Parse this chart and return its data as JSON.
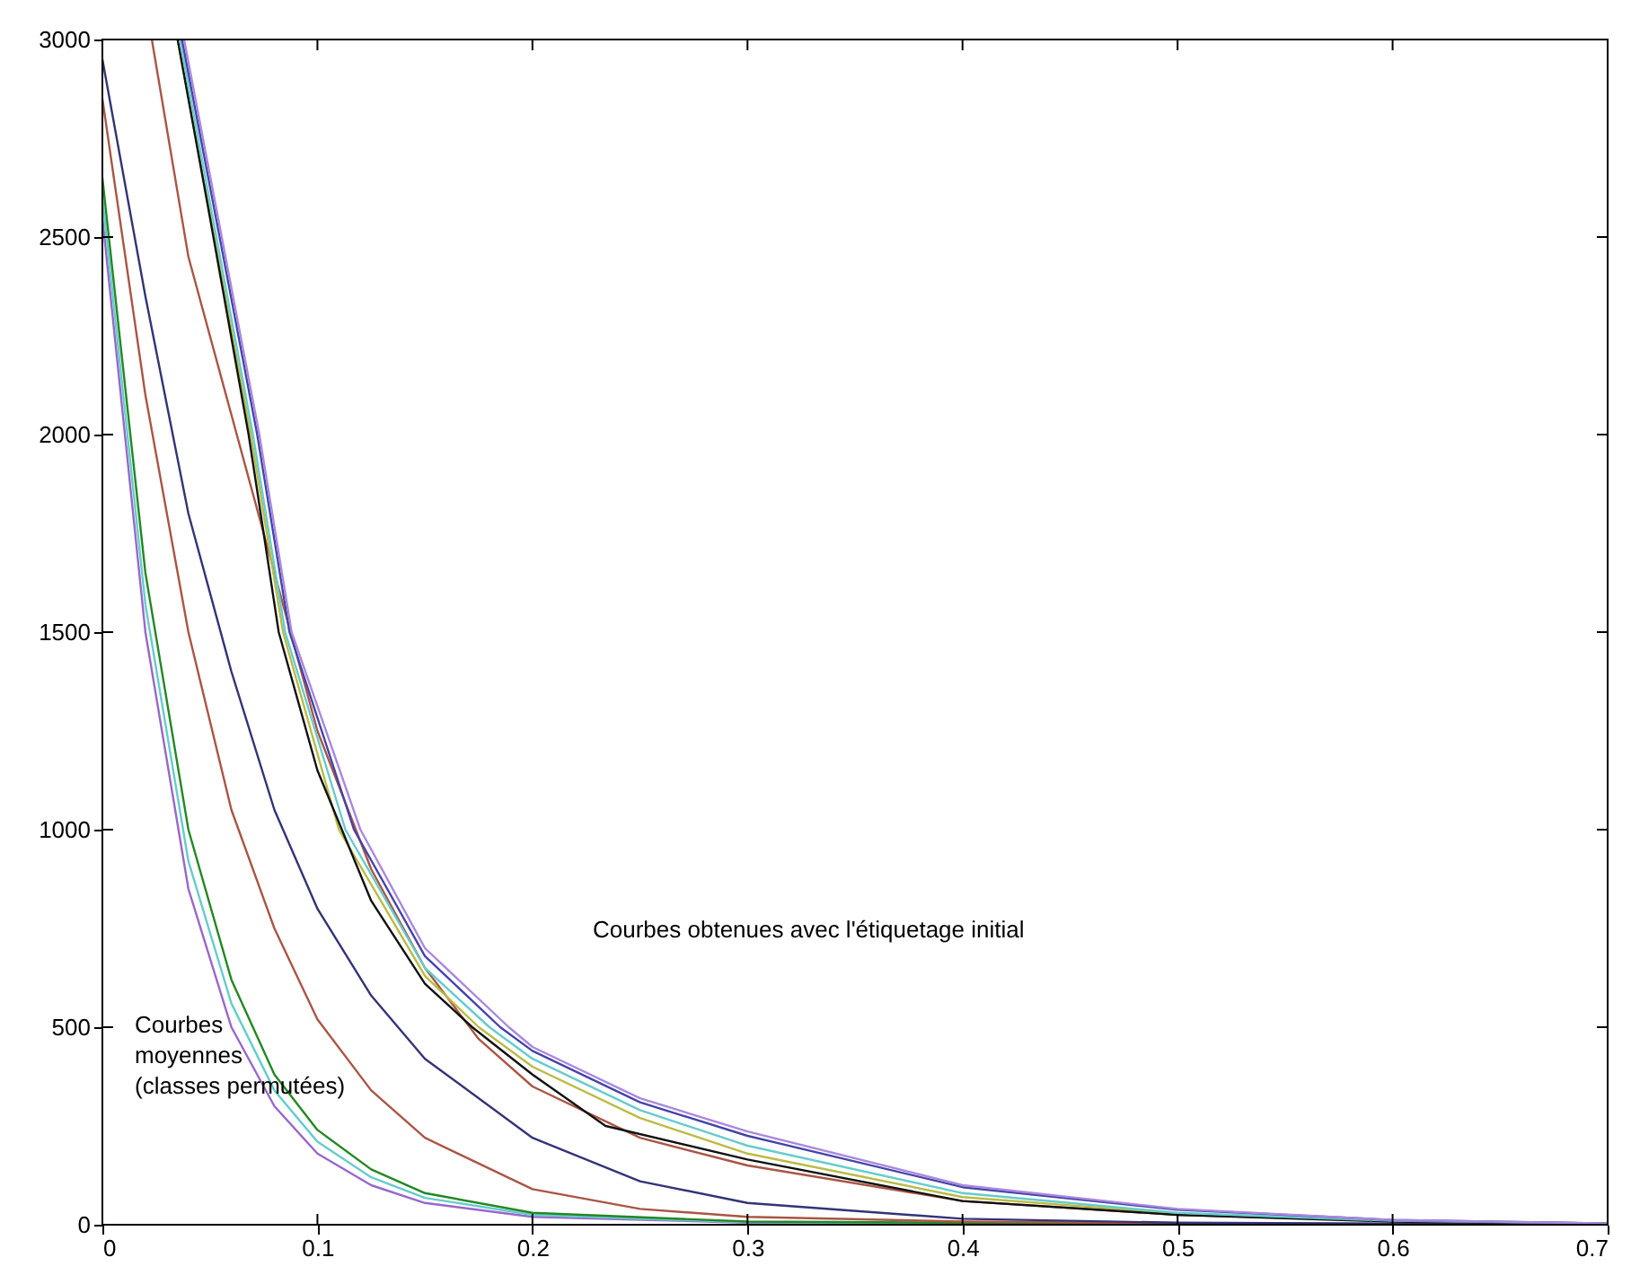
{
  "chart_data": {
    "type": "line",
    "xlim": [
      0,
      0.7
    ],
    "ylim": [
      0,
      3000
    ],
    "xticks": [
      0,
      0.1,
      0.2,
      0.3,
      0.4,
      0.5,
      0.6,
      0.7
    ],
    "yticks": [
      0,
      500,
      1000,
      1500,
      2000,
      2500,
      3000
    ],
    "grid": false,
    "legend": false,
    "marker": "none",
    "line_style": "solid",
    "annotations": [
      "Courbes obtenues avec l'étiquetage initial",
      "Courbes\nmoyennes\n(classes permutées)"
    ],
    "series": [
      {
        "color": "#9966cc",
        "x": [
          0,
          0.02,
          0.04,
          0.06,
          0.08,
          0.1,
          0.125,
          0.15,
          0.2,
          0.3,
          0.5,
          0.7
        ],
        "values": [
          2550,
          1500,
          850,
          500,
          300,
          180,
          100,
          55,
          20,
          5,
          1,
          0
        ]
      },
      {
        "color": "#66cccc",
        "x": [
          0,
          0.02,
          0.04,
          0.06,
          0.08,
          0.1,
          0.125,
          0.15,
          0.2,
          0.3,
          0.5,
          0.7
        ],
        "values": [
          2600,
          1570,
          920,
          560,
          340,
          210,
          120,
          68,
          25,
          6,
          2,
          0
        ]
      },
      {
        "color": "#228822",
        "x": [
          0,
          0.02,
          0.04,
          0.06,
          0.08,
          0.1,
          0.125,
          0.15,
          0.2,
          0.3,
          0.5,
          0.7
        ],
        "values": [
          2650,
          1650,
          1000,
          620,
          380,
          240,
          140,
          80,
          30,
          8,
          2,
          0
        ]
      },
      {
        "color": "#aa5544",
        "x": [
          0,
          0.02,
          0.04,
          0.06,
          0.08,
          0.1,
          0.125,
          0.15,
          0.2,
          0.25,
          0.3,
          0.4,
          0.5,
          0.7
        ],
        "values": [
          2850,
          2100,
          1500,
          1050,
          750,
          520,
          340,
          220,
          90,
          40,
          20,
          8,
          4,
          1
        ]
      },
      {
        "color": "#333377",
        "x": [
          0,
          0.02,
          0.04,
          0.06,
          0.08,
          0.1,
          0.125,
          0.15,
          0.2,
          0.25,
          0.3,
          0.4,
          0.5,
          0.7
        ],
        "values": [
          2950,
          2350,
          1800,
          1400,
          1050,
          800,
          580,
          420,
          220,
          110,
          55,
          15,
          5,
          1
        ]
      },
      {
        "color": "#aa5544",
        "x": [
          0.023,
          0.04,
          0.06,
          0.08,
          0.1,
          0.125,
          0.15,
          0.175,
          0.2,
          0.25,
          0.3,
          0.4,
          0.5,
          0.6,
          0.7
        ],
        "values": [
          3000,
          2450,
          2050,
          1650,
          1250,
          900,
          650,
          470,
          350,
          220,
          150,
          60,
          25,
          10,
          3
        ]
      },
      {
        "color": "#bbbb44",
        "x": [
          0.035,
          0.069,
          0.084,
          0.11,
          0.15,
          0.175,
          0.2,
          0.25,
          0.3,
          0.4,
          0.5,
          0.6,
          0.7
        ],
        "values": [
          3000,
          2000,
          1500,
          1000,
          630,
          500,
          400,
          270,
          180,
          70,
          28,
          9,
          2
        ]
      },
      {
        "color": "#111111",
        "x": [
          0.035,
          0.05,
          0.068,
          0.082,
          0.1,
          0.125,
          0.15,
          0.172,
          0.2,
          0.234,
          0.3,
          0.4,
          0.5,
          0.6,
          0.7
        ],
        "values": [
          3000,
          2550,
          2000,
          1500,
          1150,
          820,
          610,
          500,
          380,
          250,
          165,
          60,
          25,
          8,
          2
        ]
      },
      {
        "color": "#66cccc",
        "x": [
          0.036,
          0.07,
          0.085,
          0.113,
          0.15,
          0.18,
          0.2,
          0.25,
          0.3,
          0.4,
          0.5,
          0.6,
          0.7
        ],
        "values": [
          3000,
          2000,
          1500,
          1000,
          650,
          500,
          420,
          290,
          200,
          80,
          30,
          10,
          3
        ]
      },
      {
        "color": "#4444aa",
        "x": [
          0.037,
          0.072,
          0.087,
          0.117,
          0.15,
          0.185,
          0.2,
          0.25,
          0.3,
          0.4,
          0.5,
          0.6,
          0.7
        ],
        "values": [
          3000,
          2000,
          1500,
          1000,
          680,
          500,
          440,
          310,
          225,
          95,
          38,
          12,
          3
        ]
      },
      {
        "color": "#aa88dd",
        "x": [
          0.038,
          0.073,
          0.088,
          0.12,
          0.15,
          0.189,
          0.2,
          0.25,
          0.3,
          0.4,
          0.5,
          0.6,
          0.7
        ],
        "values": [
          3000,
          2000,
          1500,
          1000,
          700,
          500,
          450,
          320,
          236,
          100,
          40,
          12,
          3
        ]
      }
    ]
  }
}
